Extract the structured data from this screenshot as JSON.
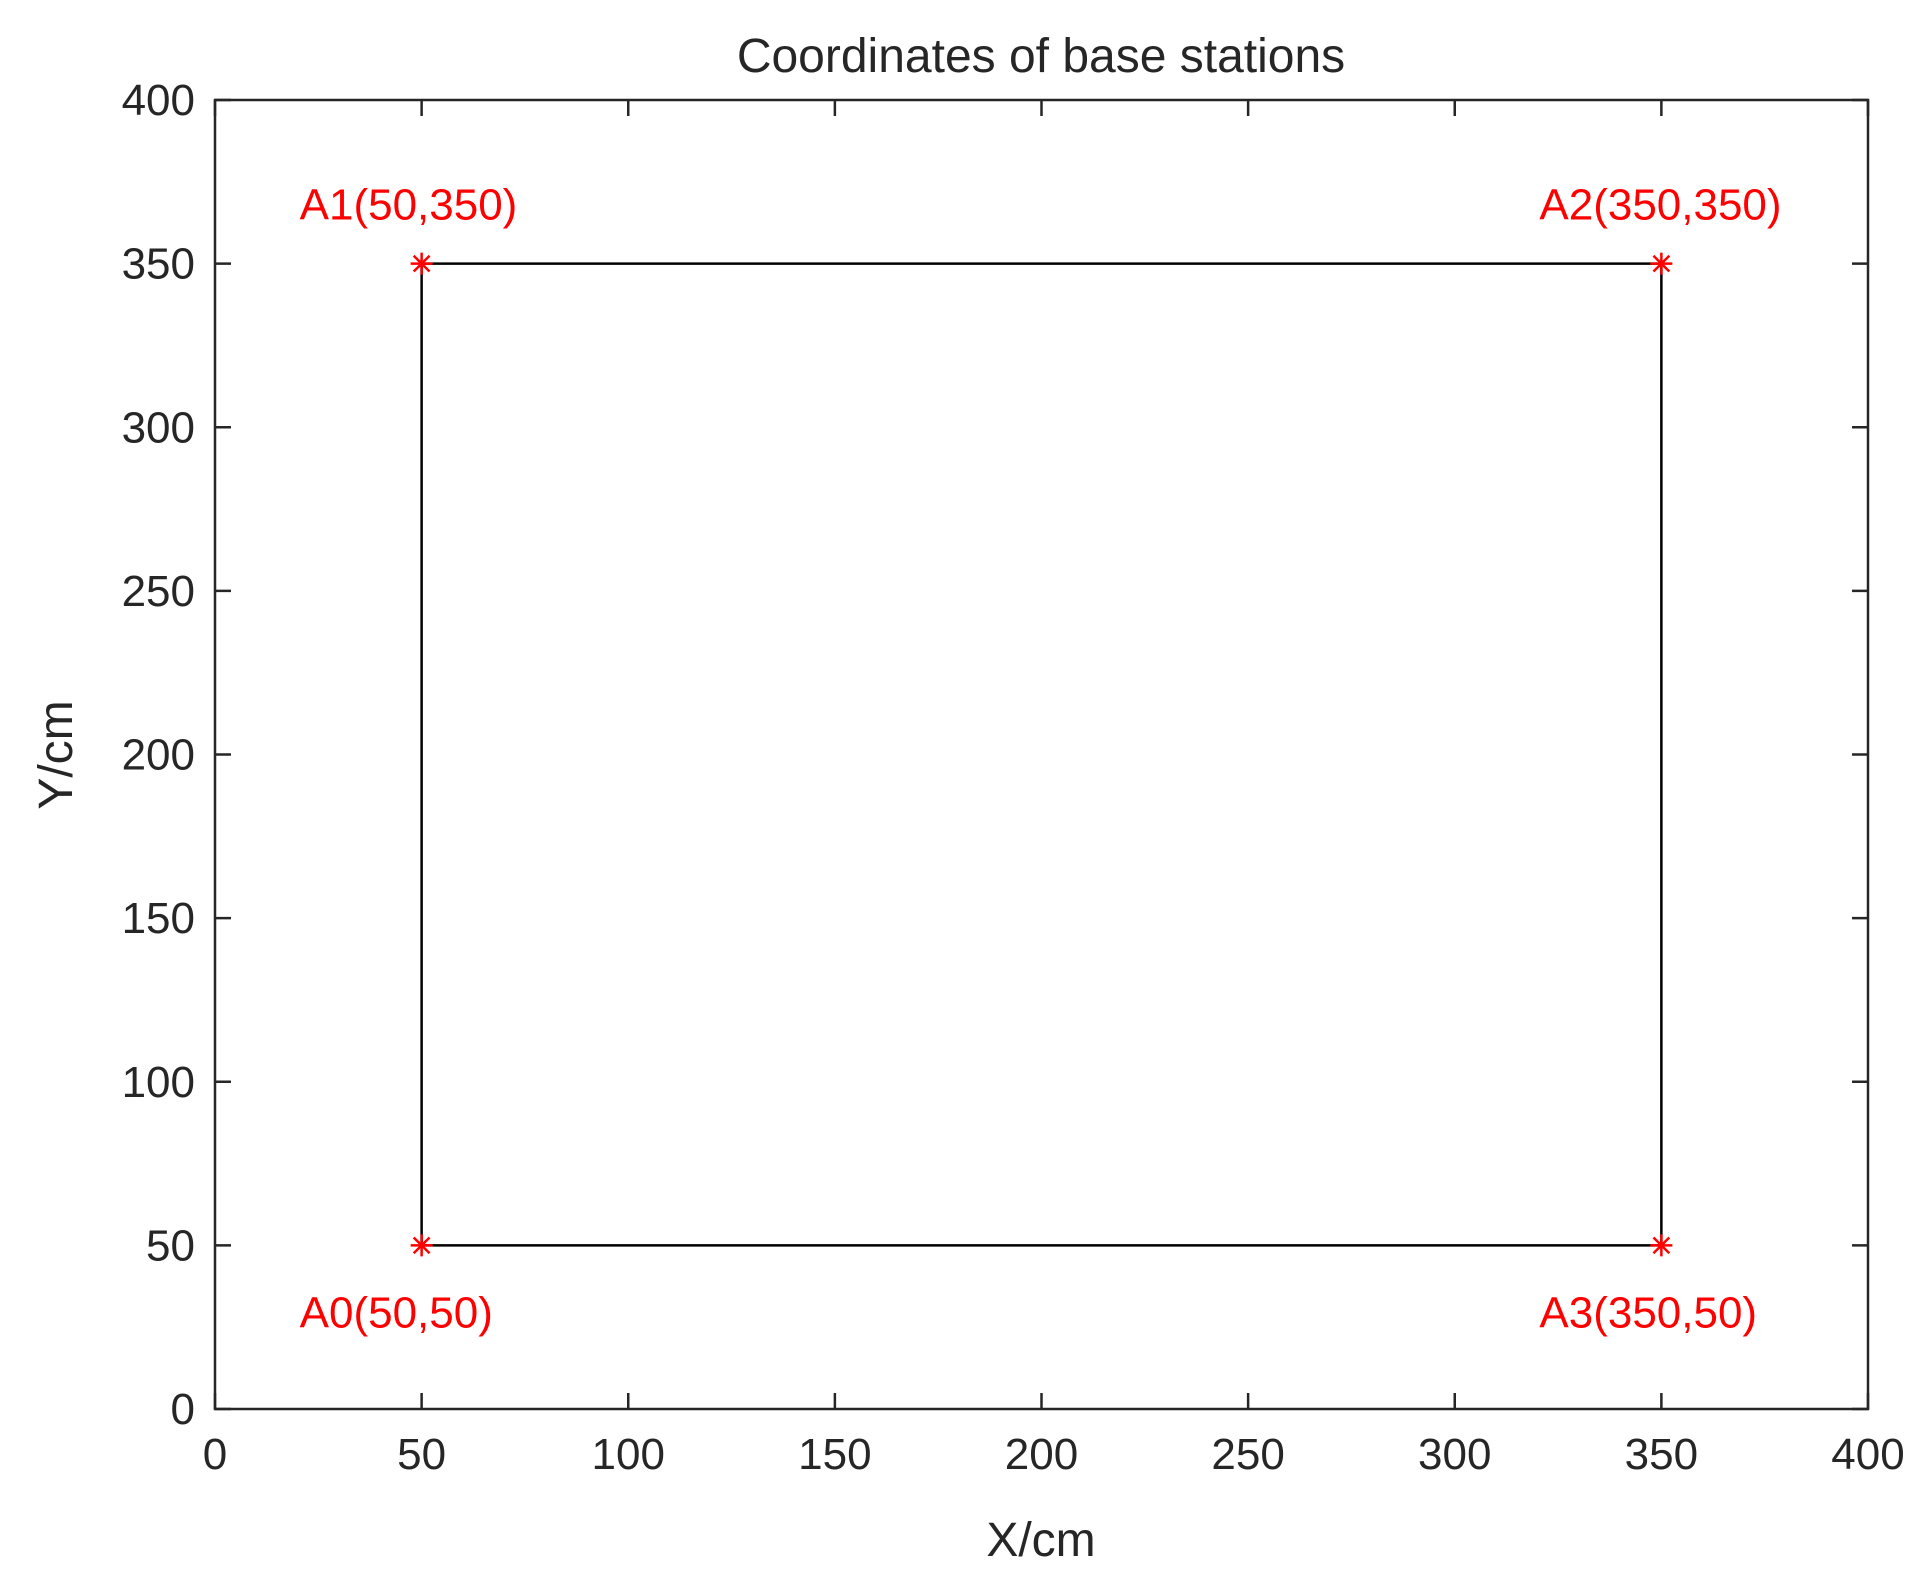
{
  "chart_data": {
    "type": "scatter",
    "title": "Coordinates of base stations",
    "xlabel": "X/cm",
    "ylabel": "Y/cm",
    "xlim": [
      0,
      400
    ],
    "ylim": [
      0,
      400
    ],
    "xticks": [
      "0",
      "50",
      "100",
      "150",
      "200",
      "250",
      "300",
      "350",
      "400"
    ],
    "yticks": [
      "0",
      "50",
      "100",
      "150",
      "200",
      "250",
      "300",
      "350",
      "400"
    ],
    "grid": false,
    "marker_color": "#ff0000",
    "line_color": "#000000",
    "points": [
      {
        "label": "A0(50,50)",
        "x": 50,
        "y": 50
      },
      {
        "label": "A1(50,350)",
        "x": 50,
        "y": 350
      },
      {
        "label": "A2(350,350)",
        "x": 350,
        "y": 350
      },
      {
        "label": "A3(350,50)",
        "x": 350,
        "y": 50
      }
    ],
    "polyline_order": [
      0,
      1,
      2,
      3,
      0
    ]
  }
}
